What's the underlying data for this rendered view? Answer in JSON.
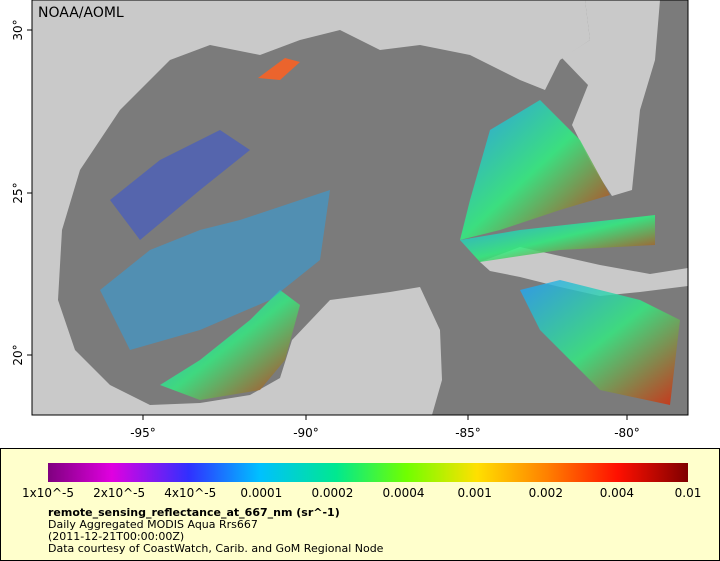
{
  "map": {
    "credit": "NOAA/AOML",
    "lon_ticks": [
      "-95°",
      "-90°",
      "-85°",
      "-80°"
    ],
    "lat_ticks": [
      "30°",
      "25°",
      "20°"
    ]
  },
  "legend": {
    "labels": [
      "1x10^-5",
      "2x10^-5",
      "4x10^-5",
      "0.0001",
      "0.0002",
      "0.0004",
      "0.001",
      "0.002",
      "0.004",
      "0.01"
    ],
    "title": "remote_sensing_reflectance_at_667_nm (sr^-1)",
    "lines": [
      "Daily Aggregated MODIS Aqua Rrs667",
      "(2011-12-21T00:00:00Z)",
      "Data courtesy of CoastWatch, Carib. and GoM Regional Node"
    ]
  }
}
